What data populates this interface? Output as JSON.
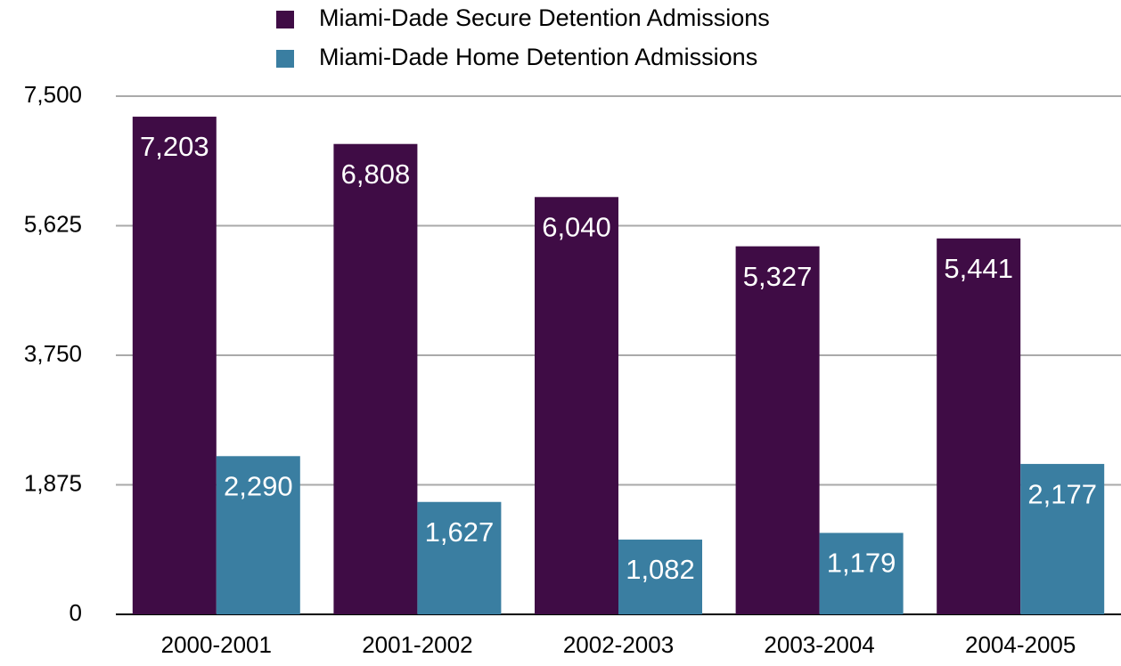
{
  "chart_data": {
    "type": "bar",
    "categories": [
      "2000-2001",
      "2001-2002",
      "2002-2003",
      "2003-2004",
      "2004-2005"
    ],
    "series": [
      {
        "name": "Miami-Dade Secure Detention Admissions",
        "color": "#3f0c45",
        "values": [
          7203,
          6808,
          6040,
          5327,
          5441
        ],
        "value_labels": [
          "7,203",
          "6,808",
          "6,040",
          "5,327",
          "5,441"
        ]
      },
      {
        "name": "Miami-Dade Home Detention Admissions",
        "color": "#3a7ea1",
        "values": [
          2290,
          1627,
          1082,
          1179,
          2177
        ],
        "value_labels": [
          "2,290",
          "1,627",
          "1,082",
          "1,179",
          "2,177"
        ]
      }
    ],
    "ylim": [
      0,
      7500
    ],
    "yticks": [
      0,
      {
        "value": 1875,
        "label": "1,875"
      },
      {
        "value": 3750,
        "label": "3,750"
      },
      {
        "value": 5625,
        "label": "5,625"
      },
      {
        "value": 7500,
        "label": "7,500"
      }
    ],
    "grid": true
  }
}
